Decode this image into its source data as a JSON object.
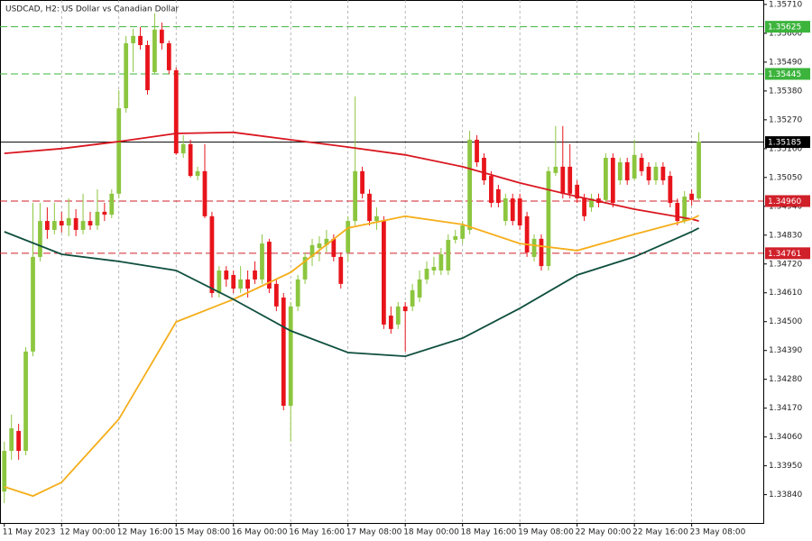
{
  "chart_data": {
    "type": "candlestick",
    "title": "USDCAD, H2:  US Dollar vs Canadian Dollar",
    "categories": [
      "11 May 2023",
      null,
      null,
      null,
      null,
      null,
      null,
      null,
      "12 May 00:00",
      null,
      null,
      null,
      null,
      null,
      null,
      null,
      "12 May 16:00",
      null,
      null,
      null,
      null,
      null,
      null,
      null,
      "15 May 08:00",
      null,
      null,
      null,
      null,
      null,
      null,
      null,
      "16 May 00:00",
      null,
      null,
      null,
      null,
      null,
      null,
      null,
      "16 May 16:00",
      null,
      null,
      null,
      null,
      null,
      null,
      null,
      "17 May 08:00",
      null,
      null,
      null,
      null,
      null,
      null,
      null,
      "18 May 00:00",
      null,
      null,
      null,
      null,
      null,
      null,
      null,
      "18 May 16:00",
      null,
      null,
      null,
      null,
      null,
      null,
      null,
      "19 May 08:00",
      null,
      null,
      null,
      null,
      null,
      null,
      null,
      "22 May 00:00",
      null,
      null,
      null,
      null,
      null,
      null,
      null,
      "22 May 16:00",
      null,
      null,
      null,
      null,
      null,
      null,
      null,
      "23 May 08:00",
      null
    ],
    "open": [
      1.33852,
      1.34007,
      1.34083,
      1.34007,
      1.34386,
      1.34747,
      1.34884,
      1.3485,
      1.34884,
      1.34867,
      1.34895,
      1.3485,
      1.34884,
      1.34867,
      1.34919,
      1.34908,
      1.34988,
      1.35314,
      1.35562,
      1.3559,
      1.35555,
      1.35452,
      1.35614,
      1.35562,
      1.35459,
      1.35142,
      1.35177,
      1.35056,
      1.35074,
      1.34902,
      1.34609,
      1.34695,
      1.34678,
      1.34626,
      1.34661,
      1.34695,
      1.34661,
      1.34805,
      1.34644,
      1.34592,
      1.34179,
      1.34558,
      1.34661,
      1.34747,
      1.34781,
      1.34792,
      1.34816,
      1.34747,
      1.34764,
      1.34884,
      1.35074,
      1.34988,
      1.34884,
      1.34884,
      1.34523,
      1.34489,
      1.34558,
      1.34558,
      1.34592,
      1.34661,
      1.34695,
      1.34695,
      1.34695,
      1.34812,
      1.34816,
      1.3485,
      1.35194,
      1.35125,
      1.35056,
      1.35005,
      1.34884,
      1.3497,
      1.3497,
      1.34902,
      1.34747,
      1.34816,
      1.34712,
      1.35067,
      1.35091,
      1.35091,
      1.35022,
      1.3497,
      1.34936,
      1.3497,
      1.34964,
      1.35125,
      1.35039,
      1.35108,
      1.35046,
      1.35125,
      1.35091,
      1.35039,
      1.35091,
      1.35056,
      1.34953,
      1.34884,
      1.34988,
      1.3497
    ],
    "high": [
      1.34042,
      1.34145,
      1.3411,
      1.34403,
      1.34953,
      1.34953,
      1.34936,
      1.34953,
      1.34919,
      1.3497,
      1.34929,
      1.34988,
      1.34919,
      1.35005,
      1.34953,
      1.35005,
      1.35383,
      1.3559,
      1.35617,
      1.35624,
      1.35572,
      1.35676,
      1.35641,
      1.35572,
      1.35469,
      1.35211,
      1.35194,
      1.35091,
      1.35177,
      1.34919,
      1.34712,
      1.34712,
      1.34695,
      1.34712,
      1.34695,
      1.3473,
      1.34833,
      1.34816,
      1.34661,
      1.34609,
      1.34575,
      1.34678,
      1.34764,
      1.34816,
      1.34826,
      1.3485,
      1.34833,
      1.34764,
      1.34902,
      1.35359,
      1.35091,
      1.35005,
      1.34936,
      1.34902,
      1.34558,
      1.34575,
      1.34575,
      1.34644,
      1.34695,
      1.3473,
      1.34747,
      1.34781,
      1.34833,
      1.3485,
      1.34884,
      1.35228,
      1.35211,
      1.35142,
      1.35074,
      1.35022,
      1.34988,
      1.34988,
      1.34988,
      1.34919,
      1.34833,
      1.34833,
      1.35091,
      1.35246,
      1.35246,
      1.35177,
      1.35039,
      1.34988,
      1.34988,
      1.34988,
      1.35142,
      1.35142,
      1.35125,
      1.35125,
      1.35194,
      1.35142,
      1.35108,
      1.35108,
      1.35108,
      1.35074,
      1.3497,
      1.34998,
      1.35005,
      1.35222
    ],
    "low": [
      1.33808,
      1.33973,
      1.33973,
      1.3399,
      1.34368,
      1.3473,
      1.34816,
      1.34833,
      1.3484,
      1.34826,
      1.34826,
      1.34833,
      1.3485,
      1.3485,
      1.34884,
      1.34895,
      1.3497,
      1.35297,
      1.35452,
      1.35538,
      1.35366,
      1.35445,
      1.35538,
      1.35445,
      1.35136,
      1.35125,
      1.3505,
      1.35039,
      1.34895,
      1.34592,
      1.34592,
      1.34633,
      1.34609,
      1.34609,
      1.34592,
      1.34644,
      1.34644,
      1.34609,
      1.3454,
      1.34162,
      1.34042,
      1.3454,
      1.34644,
      1.34712,
      1.3473,
      1.34764,
      1.3473,
      1.34626,
      1.3473,
      1.34867,
      1.3497,
      1.34867,
      1.3485,
      1.34472,
      1.34454,
      1.34472,
      1.34386,
      1.3454,
      1.34575,
      1.34644,
      1.34678,
      1.34678,
      1.34678,
      1.34798,
      1.34798,
      1.34833,
      1.35091,
      1.35022,
      1.34936,
      1.34936,
      1.34867,
      1.34867,
      1.3485,
      1.34747,
      1.3473,
      1.34695,
      1.34695,
      1.35056,
      1.3497,
      1.3497,
      1.34953,
      1.34884,
      1.34919,
      1.34936,
      1.34953,
      1.34936,
      1.35022,
      1.35022,
      1.35039,
      1.35056,
      1.35022,
      1.35022,
      1.35022,
      1.34936,
      1.34867,
      1.34874,
      1.34943,
      1.34964
    ],
    "close": [
      1.34007,
      1.34093,
      1.34007,
      1.34386,
      1.34747,
      1.34884,
      1.3485,
      1.34884,
      1.34867,
      1.34895,
      1.3485,
      1.34884,
      1.34867,
      1.34919,
      1.34908,
      1.34988,
      1.35314,
      1.35562,
      1.3559,
      1.35555,
      1.35383,
      1.35614,
      1.35562,
      1.35459,
      1.35142,
      1.35177,
      1.35056,
      1.35074,
      1.34902,
      1.34609,
      1.34695,
      1.34661,
      1.34626,
      1.34661,
      1.34626,
      1.34661,
      1.34798,
      1.34626,
      1.34558,
      1.34179,
      1.34558,
      1.34661,
      1.34747,
      1.34792,
      1.34798,
      1.34816,
      1.34747,
      1.34644,
      1.34884,
      1.35074,
      1.34988,
      1.34884,
      1.34902,
      1.34489,
      1.34472,
      1.34558,
      1.3454,
      1.3462,
      1.34661,
      1.34702,
      1.34709,
      1.34757,
      1.34812,
      1.34826,
      1.34867,
      1.35194,
      1.35108,
      1.35039,
      1.34953,
      1.34953,
      1.3497,
      1.34884,
      1.34867,
      1.34764,
      1.34816,
      1.34712,
      1.35074,
      1.35091,
      1.34988,
      1.34988,
      1.3497,
      1.34902,
      1.3497,
      1.34953,
      1.35125,
      1.34953,
      1.35108,
      1.35039,
      1.35136,
      1.35074,
      1.35039,
      1.35091,
      1.35039,
      1.34953,
      1.34884,
      1.34977,
      1.34964,
      1.35187
    ],
    "up_color": "#8cc63f",
    "down_color": "#e8141b",
    "series": [
      {
        "color": "#d9161f",
        "x": [
          0,
          8,
          16,
          24,
          32,
          40,
          48,
          56,
          64,
          72,
          80,
          88,
          96,
          97
        ],
        "values": [
          1.35142,
          1.3516,
          1.35187,
          1.35218,
          1.35222,
          1.35194,
          1.35166,
          1.35136,
          1.35091,
          1.35029,
          1.34977,
          1.34929,
          1.34891,
          1.34884
        ]
      },
      {
        "color": "#f5ae1a",
        "x": [
          0,
          4,
          8,
          16,
          24,
          32,
          40,
          48,
          56,
          64,
          72,
          80,
          88,
          96,
          97
        ],
        "values": [
          1.3387,
          1.33835,
          1.33887,
          1.34128,
          1.34499,
          1.34585,
          1.34688,
          1.34857,
          1.34902,
          1.34871,
          1.34798,
          1.34771,
          1.34833,
          1.34891,
          1.34905
        ]
      },
      {
        "color": "#0f4f3e",
        "x": [
          0,
          8,
          16,
          24,
          32,
          40,
          48,
          56,
          64,
          72,
          80,
          88,
          96,
          97
        ],
        "values": [
          1.34843,
          1.34757,
          1.3473,
          1.34695,
          1.34585,
          1.34465,
          1.34382,
          1.34368,
          1.34437,
          1.34551,
          1.34678,
          1.34747,
          1.34843,
          1.34857
        ]
      }
    ],
    "levels": [
      {
        "value": 1.35625,
        "color": "#3cb43c",
        "style": "dashed"
      },
      {
        "value": 1.35445,
        "color": "#3cb43c",
        "style": "dashed"
      },
      {
        "value": 1.35185,
        "color": "#000000",
        "style": "solid"
      },
      {
        "value": 1.3496,
        "label": "1.34960",
        "color": "#d0202a",
        "style": "dashed"
      },
      {
        "value": 1.34761,
        "color": "#d0202a",
        "style": "dashed"
      }
    ],
    "xlim": [
      -0.6,
      106
    ],
    "ylim": [
      1.33732,
      1.35727
    ],
    "yticks": [
      {
        "value": 1.3571,
        "label": "1.35710"
      },
      {
        "value": 1.356,
        "label": "1.35600"
      },
      {
        "value": 1.3549,
        "label": "1.35490"
      },
      {
        "value": 1.3538,
        "label": "1.35380"
      },
      {
        "value": 1.3527,
        "label": "1.35270"
      },
      {
        "value": 1.3516,
        "label": "1.35160"
      },
      {
        "value": 1.3505,
        "label": "1.35050"
      },
      {
        "value": 1.3494,
        "label": "1.34940"
      },
      {
        "value": 1.3483,
        "label": "1.34830"
      },
      {
        "value": 1.3472,
        "label": "1.34720"
      },
      {
        "value": 1.3461,
        "label": "1.34610"
      },
      {
        "value": 1.345,
        "label": "1.34500"
      },
      {
        "value": 1.3439,
        "label": "1.34390"
      },
      {
        "value": 1.3428,
        "label": "1.34280"
      },
      {
        "value": 1.3417,
        "label": "1.34170"
      },
      {
        "value": 1.3406,
        "label": "1.34060"
      },
      {
        "value": 1.3395,
        "label": "1.33950"
      },
      {
        "value": 1.3384,
        "label": "1.33840"
      }
    ],
    "grid": true
  }
}
